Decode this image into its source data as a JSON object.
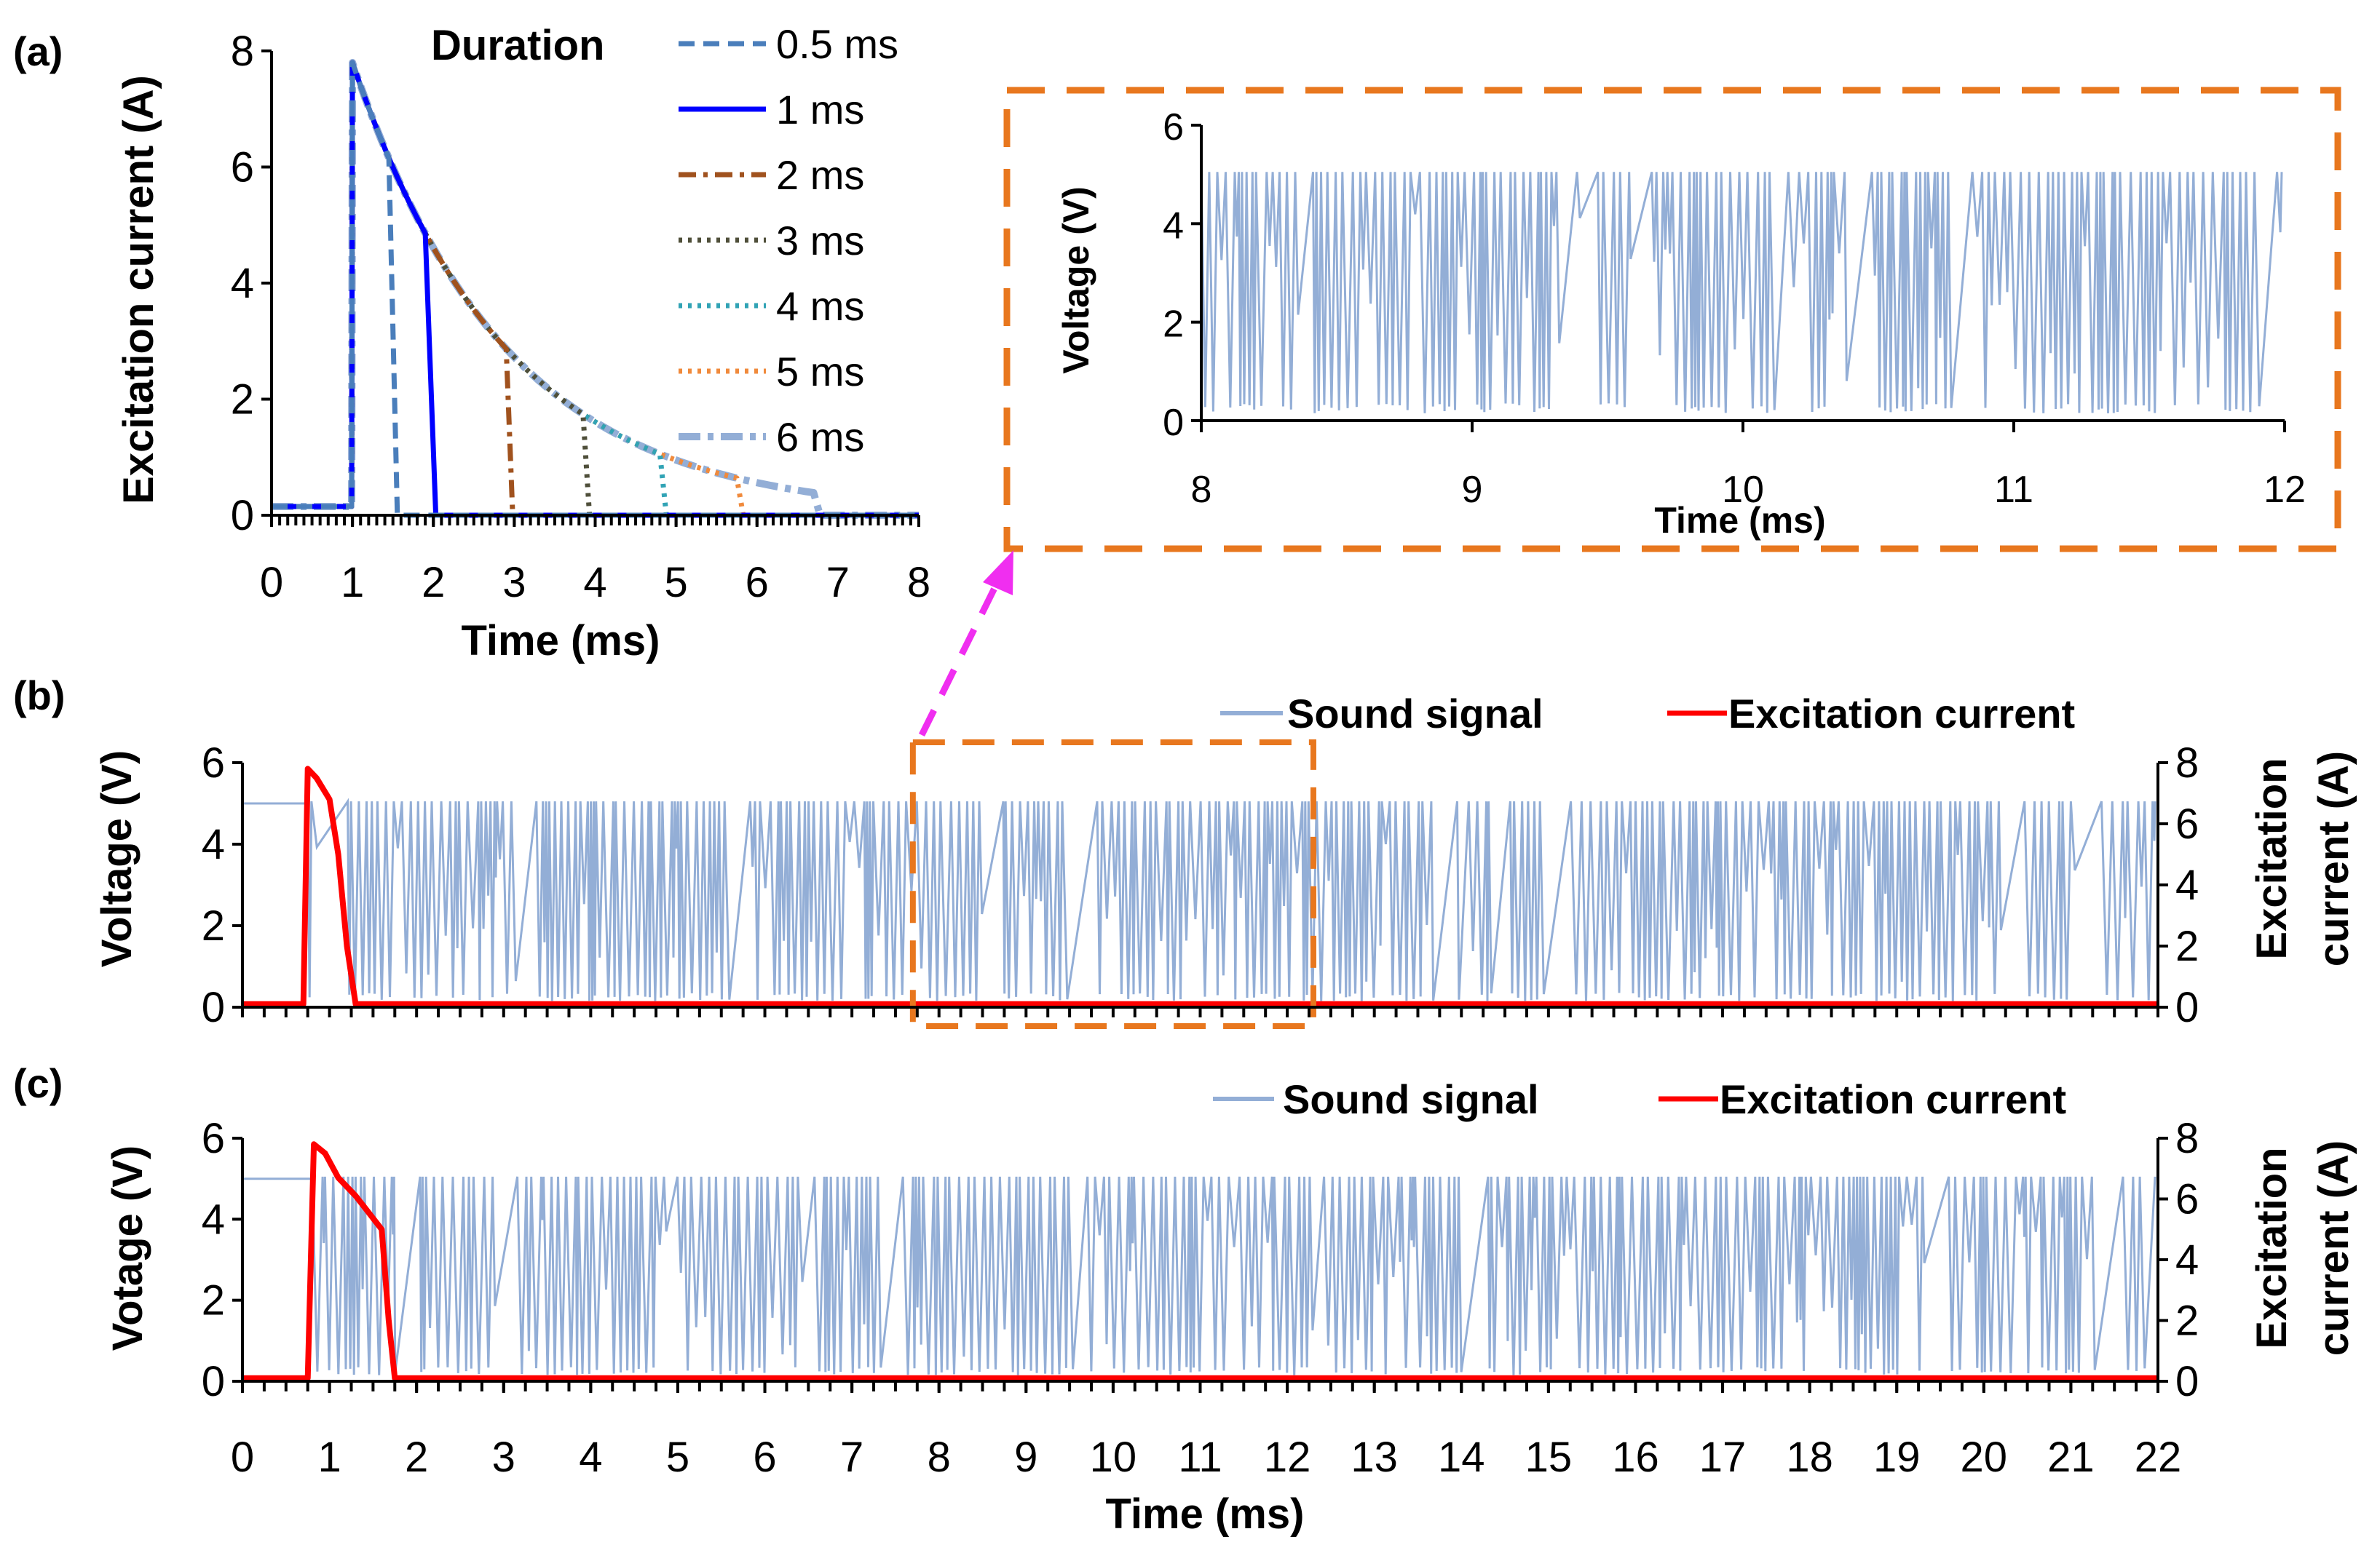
{
  "colors": {
    "sound": "#93AED6",
    "current": "#FF0000",
    "box": "#E8771E",
    "arrow": "#F02EF0",
    "d05": "#4A7EBB",
    "d1": "#0000FF",
    "d2": "#A0521E",
    "d3": "#4F4F3A",
    "d4": "#31A3B5",
    "d5": "#F08A3C",
    "d6": "#93AED6"
  },
  "chart_data": [
    {
      "id": "a",
      "panel_label": "(a)",
      "type": "line",
      "xlabel": "Time (ms)",
      "ylabel": "Excitation current (A)",
      "xlim": [
        0,
        8
      ],
      "ylim": [
        0,
        8
      ],
      "xticks": [
        "0",
        "1",
        "2",
        "3",
        "4",
        "5",
        "6",
        "7",
        "8"
      ],
      "yticks": [
        "0",
        "2",
        "4",
        "6",
        "8"
      ],
      "legend_title": "Duration",
      "peak_current": 7.8,
      "pulse_start_ms": 1.0,
      "decay_tau_ms": 1.9,
      "series": [
        {
          "name": "0.5 ms",
          "duration_ms": 0.5,
          "style": "dash"
        },
        {
          "name": "1 ms",
          "duration_ms": 1,
          "style": "solid"
        },
        {
          "name": "2 ms",
          "duration_ms": 2,
          "style": "dashdot"
        },
        {
          "name": "3 ms",
          "duration_ms": 3,
          "style": "dot"
        },
        {
          "name": "4 ms",
          "duration_ms": 4,
          "style": "dot"
        },
        {
          "name": "5 ms",
          "duration_ms": 5,
          "style": "dot"
        },
        {
          "name": "6 ms",
          "duration_ms": 6,
          "style": "dashdotthick"
        }
      ]
    },
    {
      "id": "inset",
      "type": "line",
      "xlabel": "Time (ms)",
      "ylabel": "Voltage (V)",
      "xlim": [
        8,
        12
      ],
      "ylim": [
        0,
        6
      ],
      "xticks": [
        "8",
        "9",
        "10",
        "11",
        "12"
      ],
      "yticks": [
        "0",
        "2",
        "4",
        "6"
      ],
      "series": [
        {
          "name": "Sound signal",
          "high_v": 5.05,
          "low_v": 0.15
        }
      ]
    },
    {
      "id": "b",
      "panel_label": "(b)",
      "type": "line",
      "xlabel": "",
      "ylabel": "Voltage (V)",
      "ylabel_right": [
        "Excitation",
        "current (A)"
      ],
      "xlim": [
        0,
        22
      ],
      "ylim": [
        0,
        6
      ],
      "ylim_right": [
        0,
        8
      ],
      "yticks": [
        "0",
        "2",
        "4",
        "6"
      ],
      "yticks_right": [
        "0",
        "2",
        "4",
        "6",
        "8"
      ],
      "legend": [
        "Sound signal",
        "Excitation current"
      ],
      "zoom_box_ms": [
        7.7,
        12.3
      ],
      "current_points": [
        [
          0,
          0.1
        ],
        [
          0.7,
          0.1
        ],
        [
          0.75,
          7.8
        ],
        [
          0.85,
          7.5
        ],
        [
          1.0,
          6.8
        ],
        [
          1.1,
          5.0
        ],
        [
          1.2,
          2.0
        ],
        [
          1.3,
          0.1
        ],
        [
          22,
          0.1
        ]
      ],
      "sound_onset_ms": 0.75,
      "pre_onset_v": 5.0
    },
    {
      "id": "c",
      "panel_label": "(c)",
      "type": "line",
      "xlabel": "Time (ms)",
      "ylabel": "Votage (V)",
      "ylabel_right": [
        "Excitation",
        "current (A)"
      ],
      "xlim": [
        0,
        22
      ],
      "ylim": [
        0,
        6
      ],
      "ylim_right": [
        0,
        8
      ],
      "xticks": [
        "0",
        "1",
        "2",
        "3",
        "4",
        "5",
        "6",
        "7",
        "8",
        "9",
        "10",
        "11",
        "12",
        "13",
        "14",
        "15",
        "16",
        "17",
        "18",
        "19",
        "20",
        "21",
        "22"
      ],
      "yticks": [
        "0",
        "2",
        "4",
        "6"
      ],
      "yticks_right": [
        "0",
        "2",
        "4",
        "6",
        "8"
      ],
      "legend": [
        "Sound signal",
        "Excitation current"
      ],
      "current_points": [
        [
          0,
          0.1
        ],
        [
          0.75,
          0.1
        ],
        [
          0.82,
          7.8
        ],
        [
          0.95,
          7.5
        ],
        [
          1.1,
          6.7
        ],
        [
          1.3,
          6.1
        ],
        [
          1.6,
          5.0
        ],
        [
          1.68,
          2.0
        ],
        [
          1.75,
          0.1
        ],
        [
          22,
          0.1
        ]
      ],
      "sound_onset_ms": 0.8,
      "pre_onset_v": 5.0
    }
  ]
}
